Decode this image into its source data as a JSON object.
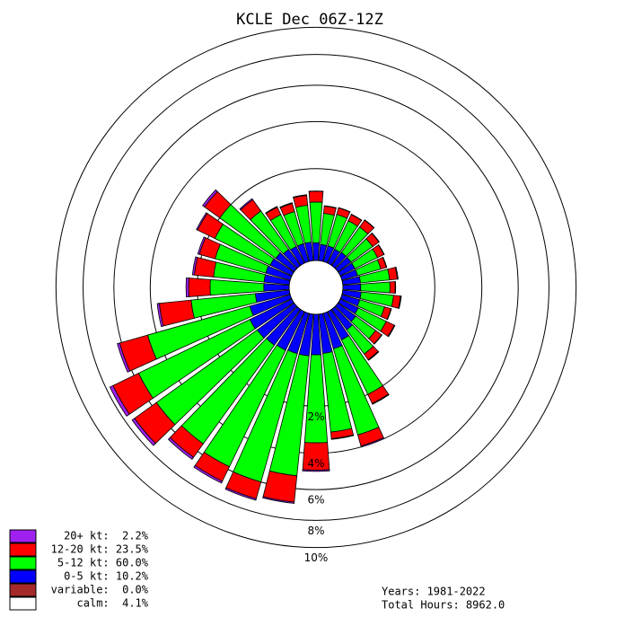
{
  "chart_data": {
    "type": "windrose",
    "title": "KCLE Dec 06Z-12Z",
    "x": [
      0,
      10,
      20,
      30,
      40,
      50,
      60,
      70,
      80,
      90,
      100,
      110,
      120,
      130,
      140,
      150,
      160,
      170,
      180,
      190,
      200,
      210,
      220,
      230,
      240,
      250,
      260,
      270,
      280,
      290,
      300,
      310,
      320,
      330,
      340,
      350
    ],
    "rticks": [
      {
        "value": 2,
        "label": "2%"
      },
      {
        "value": 4,
        "label": "4%"
      },
      {
        "value": 6,
        "label": "6%"
      },
      {
        "value": 8,
        "label": "8%"
      },
      {
        "value": 10,
        "label": "10%"
      }
    ],
    "series": [
      {
        "label": "20+ kt:  2.2%",
        "color": "#a020f0",
        "values": [
          0.01,
          0.01,
          0.01,
          0.01,
          0.01,
          0.01,
          0.01,
          0.01,
          0.02,
          0.01,
          0.02,
          0.01,
          0.02,
          0.01,
          0.02,
          0.03,
          0.05,
          0.03,
          0.07,
          0.08,
          0.1,
          0.13,
          0.15,
          0.2,
          0.23,
          0.15,
          0.1,
          0.1,
          0.07,
          0.06,
          0.05,
          0.1,
          0.04,
          0.02,
          0.02,
          0.02
        ]
      },
      {
        "label": "12-20 kt: 23.5%",
        "color": "#ff0000",
        "values": [
          0.29,
          0.17,
          0.16,
          0.16,
          0.2,
          0.17,
          0.15,
          0.12,
          0.18,
          0.12,
          0.17,
          0.15,
          0.22,
          0.17,
          0.18,
          0.38,
          0.55,
          0.3,
          1.38,
          1.6,
          1.1,
          1.0,
          1.0,
          1.7,
          1.8,
          1.65,
          1.35,
          0.75,
          0.65,
          0.55,
          0.7,
          0.72,
          0.42,
          0.21,
          0.21,
          0.26
        ]
      },
      {
        "label": "5-12 kt: 60.0%",
        "color": "#00ff00",
        "values": [
          0.79,
          0.55,
          0.58,
          0.55,
          0.55,
          0.45,
          0.42,
          0.4,
          0.52,
          0.52,
          0.6,
          0.45,
          0.58,
          0.45,
          0.6,
          1.6,
          2.9,
          2.5,
          2.93,
          4.65,
          5.4,
          5.2,
          4.8,
          5.0,
          5.0,
          3.87,
          1.8,
          1.27,
          1.18,
          1.24,
          1.5,
          1.74,
          1.0,
          0.67,
          0.62,
          0.71
        ]
      },
      {
        "label": "0-5 kt: 10.2%",
        "color": "#0000ff",
        "values": [
          0.19,
          0.17,
          0.17,
          0.16,
          0.17,
          0.17,
          0.17,
          0.17,
          0.19,
          0.19,
          0.2,
          0.2,
          0.22,
          0.25,
          0.3,
          0.4,
          0.5,
          0.55,
          0.57,
          0.6,
          0.6,
          0.62,
          0.65,
          0.68,
          0.7,
          0.6,
          0.45,
          0.3,
          0.3,
          0.3,
          0.28,
          0.26,
          0.22,
          0.2,
          0.2,
          0.2
        ]
      }
    ],
    "legend_extra": [
      {
        "label": "variable:  0.0%",
        "color": "#a52a2a"
      },
      {
        "label": "calm:  4.1%",
        "color": "#ffffff"
      }
    ],
    "footer": [
      "Years: 1981-2022",
      "Total Hours: 8962.0"
    ]
  }
}
